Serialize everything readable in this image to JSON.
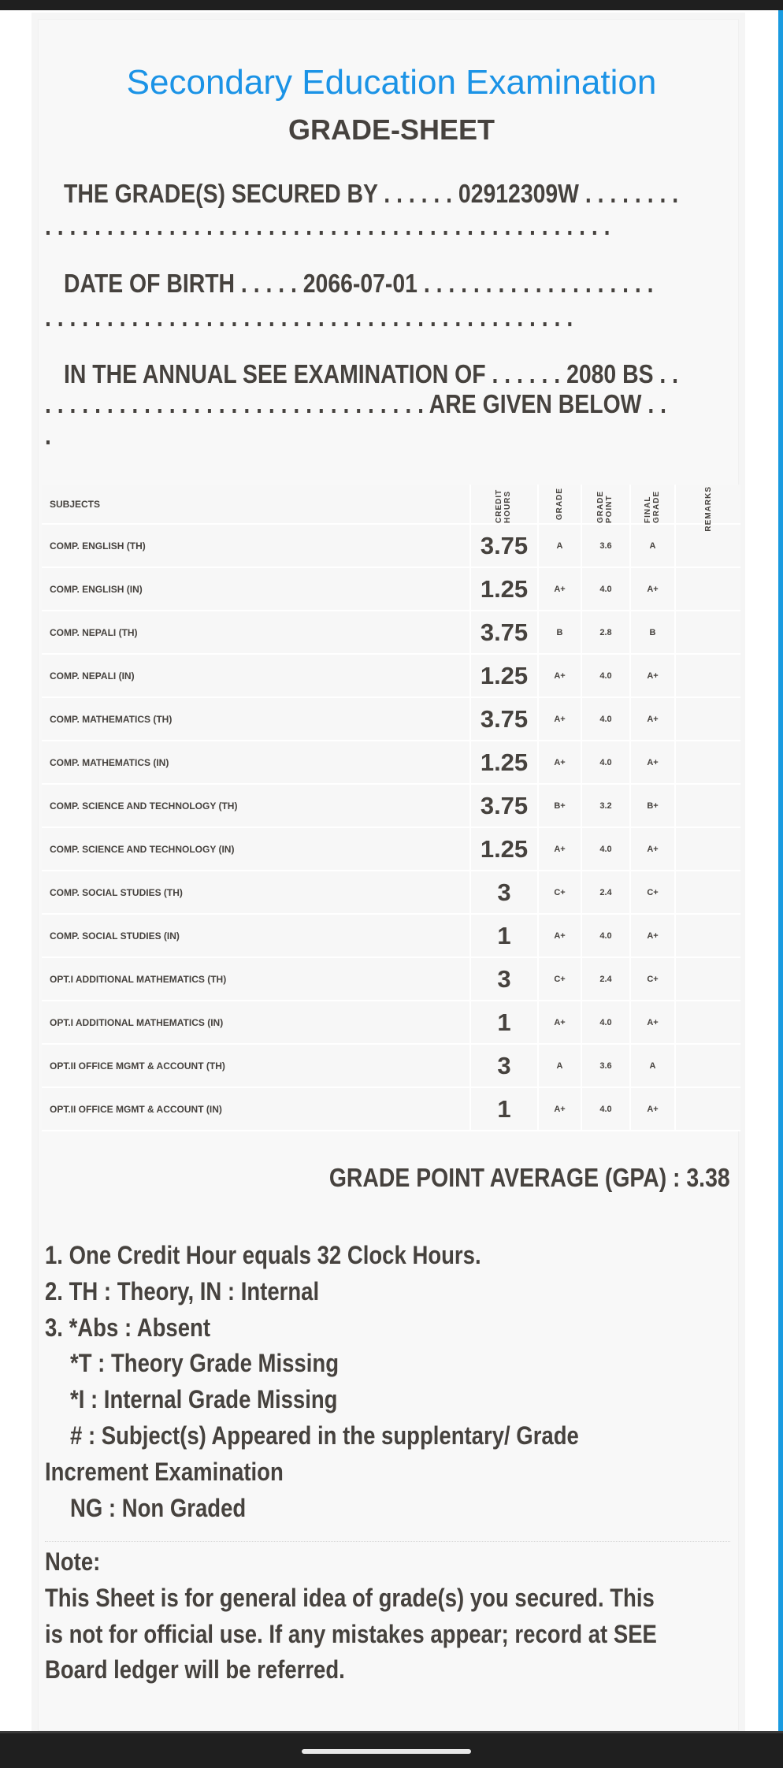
{
  "header": {
    "title": "Secondary Education Examination",
    "subtitle": "GRADE-SHEET"
  },
  "intro": {
    "secured_line1": "THE GRADE(S) SECURED BY . . . . . . 02912309W . . . . . . . .",
    "secured_line2": ". . . . . . . . . . . . . . . . . . . . . . . . . . . . . . . . . . . . . . . . . . . . . .",
    "dob_line1": "DATE OF BIRTH . . . . . 2066-07-01 . . . . . . . . . . . . . . . . . . .",
    "dob_line2": ". . . . . . . . . . . . . . . . . . . . . . . . . . . . . . . . . . . . . . . . . . .",
    "exam_line1": "IN THE ANNUAL SEE EXAMINATION OF . . . . . . 2080 BS . .",
    "exam_line2": ". . . . . . . . . . . . . . . . . . . . . . . . . . . . . . . ARE GIVEN BELOW . .",
    "exam_line3": ".",
    "symbol_no": "02912309W",
    "dob": "2066-07-01",
    "exam_year": "2080 BS"
  },
  "table": {
    "headers": {
      "subjects": "SUBJECTS",
      "credit_hours": "CREDIT HOURS",
      "grade": "GRADE",
      "grade_point": "GRADE POINT",
      "final_grade": "FINAL GRADE",
      "remarks": "REMARKS"
    },
    "rows": [
      {
        "subject": "COMP. ENGLISH (TH)",
        "credit": "3.75",
        "grade": "A",
        "gp": "3.6",
        "final": "A",
        "remarks": ""
      },
      {
        "subject": "COMP. ENGLISH (IN)",
        "credit": "1.25",
        "grade": "A+",
        "gp": "4.0",
        "final": "A+",
        "remarks": ""
      },
      {
        "subject": "COMP. NEPALI (TH)",
        "credit": "3.75",
        "grade": "B",
        "gp": "2.8",
        "final": "B",
        "remarks": ""
      },
      {
        "subject": "COMP. NEPALI (IN)",
        "credit": "1.25",
        "grade": "A+",
        "gp": "4.0",
        "final": "A+",
        "remarks": ""
      },
      {
        "subject": "COMP. MATHEMATICS (TH)",
        "credit": "3.75",
        "grade": "A+",
        "gp": "4.0",
        "final": "A+",
        "remarks": ""
      },
      {
        "subject": "COMP. MATHEMATICS (IN)",
        "credit": "1.25",
        "grade": "A+",
        "gp": "4.0",
        "final": "A+",
        "remarks": ""
      },
      {
        "subject": "COMP. SCIENCE AND TECHNOLOGY (TH)",
        "credit": "3.75",
        "grade": "B+",
        "gp": "3.2",
        "final": "B+",
        "remarks": ""
      },
      {
        "subject": "COMP. SCIENCE AND TECHNOLOGY (IN)",
        "credit": "1.25",
        "grade": "A+",
        "gp": "4.0",
        "final": "A+",
        "remarks": ""
      },
      {
        "subject": "COMP. SOCIAL STUDIES (TH)",
        "credit": "3",
        "grade": "C+",
        "gp": "2.4",
        "final": "C+",
        "remarks": ""
      },
      {
        "subject": "COMP. SOCIAL STUDIES (IN)",
        "credit": "1",
        "grade": "A+",
        "gp": "4.0",
        "final": "A+",
        "remarks": ""
      },
      {
        "subject": "OPT.I ADDITIONAL MATHEMATICS (TH)",
        "credit": "3",
        "grade": "C+",
        "gp": "2.4",
        "final": "C+",
        "remarks": ""
      },
      {
        "subject": "OPT.I ADDITIONAL MATHEMATICS (IN)",
        "credit": "1",
        "grade": "A+",
        "gp": "4.0",
        "final": "A+",
        "remarks": ""
      },
      {
        "subject": "OPT.II OFFICE MGMT & ACCOUNT (TH)",
        "credit": "3",
        "grade": "A",
        "gp": "3.6",
        "final": "A",
        "remarks": ""
      },
      {
        "subject": "OPT.II OFFICE MGMT & ACCOUNT (IN)",
        "credit": "1",
        "grade": "A+",
        "gp": "4.0",
        "final": "A+",
        "remarks": ""
      }
    ]
  },
  "gpa": {
    "label": "GRADE POINT AVERAGE (GPA) : 3.38",
    "value": "3.38"
  },
  "legend": [
    "1. One Credit Hour equals 32 Clock Hours.",
    "2. TH : Theory, IN : Internal",
    "3. *Abs : Absent",
    "   *T : Theory Grade Missing",
    "   *I : Internal Grade Missing",
    "   # : Subject(s) Appeared in the supplentary/ Grade",
    "Increment Examination",
    "   NG : Non Graded"
  ],
  "note": {
    "heading": "Note:",
    "lines": [
      "This Sheet is for general idea of grade(s) you secured. This",
      "is not for official use. If any mistakes appear; record at SEE",
      "Board ledger will be referred."
    ]
  },
  "colors": {
    "title": "#1b93e6",
    "text": "#46423e",
    "scroll_indicator": "#1a9be0"
  }
}
